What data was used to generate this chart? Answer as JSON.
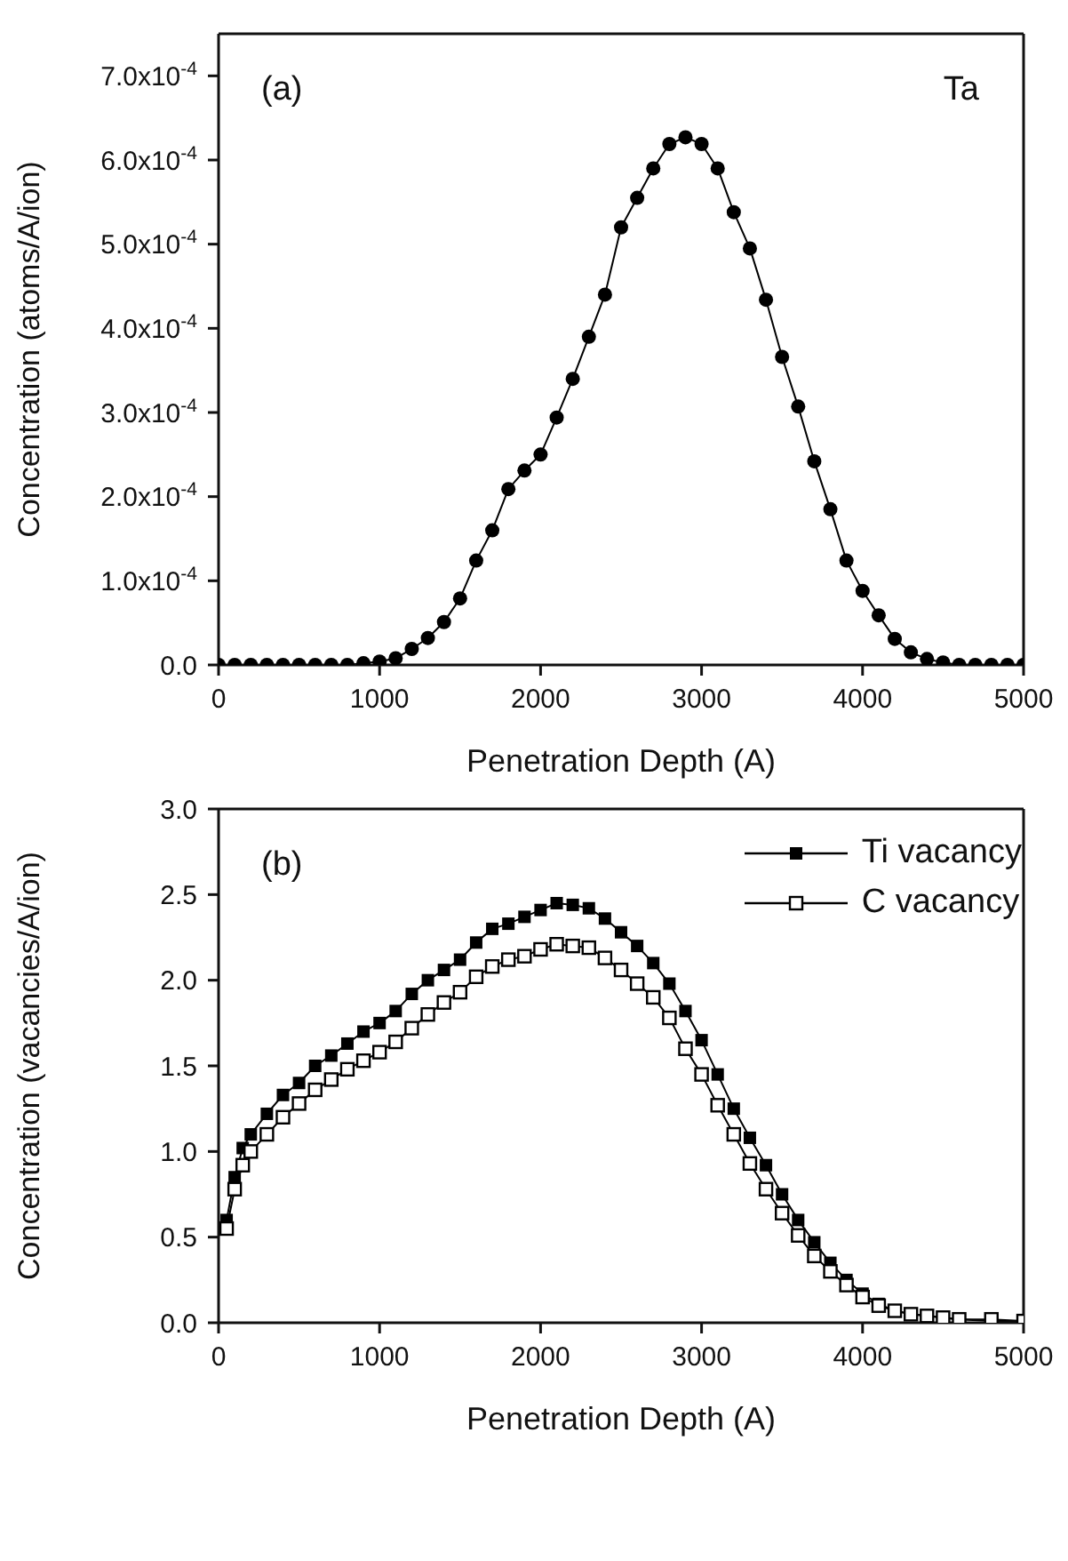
{
  "chart_data": [
    {
      "type": "line",
      "xlabel": "Penetration Depth (A)",
      "ylabel": "Concentration (atoms/A/ion)",
      "annotations": [
        "(a)",
        "Ta"
      ],
      "marker": "circle",
      "line_style": "solid",
      "legend": false,
      "xlim": [
        0,
        5000
      ],
      "xticks": [
        0,
        1000,
        2000,
        3000,
        4000,
        5000
      ],
      "ylim": [
        0,
        0.00075
      ],
      "yticks": [
        {
          "value": 0,
          "label": "0.0"
        },
        {
          "value": 0.0001,
          "label": "1.0x10$^{-4}$"
        },
        {
          "value": 0.0002,
          "label": "2.0x10$^{-4}$"
        },
        {
          "value": 0.0003,
          "label": "3.0x10$^{-4}$"
        },
        {
          "value": 0.0004,
          "label": "4.0x10$^{-4}$"
        },
        {
          "value": 0.0005,
          "label": "5.0x10$^{-4}$"
        },
        {
          "value": 0.0006,
          "label": "6.0x10$^{-4}$"
        },
        {
          "value": 0.0007,
          "label": "7.0x10$^{-4}$"
        }
      ],
      "x": [
        0,
        100,
        200,
        300,
        400,
        500,
        600,
        700,
        800,
        900,
        1000,
        1100,
        1200,
        1300,
        1400,
        1500,
        1600,
        1700,
        1800,
        1900,
        2000,
        2100,
        2200,
        2300,
        2400,
        2500,
        2600,
        2700,
        2800,
        2900,
        3000,
        3100,
        3200,
        3300,
        3400,
        3500,
        3600,
        3700,
        3800,
        3900,
        4000,
        4100,
        4200,
        4300,
        4400,
        4500,
        4600,
        4700,
        4800,
        4900,
        5000
      ],
      "series": [
        {
          "color": "#000000",
          "values": [
            0,
            0,
            0,
            0,
            0,
            0,
            0,
            0,
            0,
            2e-06,
            4e-06,
            8e-06,
            1.9e-05,
            3.2e-05,
            5.1e-05,
            7.9e-05,
            0.000124,
            0.00016,
            0.000209,
            0.000231,
            0.00025,
            0.000294,
            0.00034,
            0.00039,
            0.00044,
            0.00052,
            0.000555,
            0.00059,
            0.000619,
            0.000627,
            0.000619,
            0.00059,
            0.000538,
            0.000495,
            0.000434,
            0.000366,
            0.000307,
            0.000242,
            0.000185,
            0.000124,
            8.8e-05,
            5.9e-05,
            3.1e-05,
            1.5e-05,
            7e-06,
            3e-06,
            0,
            0,
            0,
            0,
            0
          ]
        }
      ]
    },
    {
      "type": "line",
      "xlabel": "Penetration Depth (A)",
      "ylabel": "Concentration (vacancies/A/ion)",
      "annotations": [
        "(b)"
      ],
      "marker": "square",
      "line_style": "solid",
      "legend": "top right",
      "xlim": [
        0,
        5000
      ],
      "xticks": [
        0,
        1000,
        2000,
        3000,
        4000,
        5000
      ],
      "ylim": [
        0,
        3
      ],
      "yticks": [
        {
          "value": 0,
          "label": "0.0"
        },
        {
          "value": 0.5,
          "label": "0.5"
        },
        {
          "value": 1,
          "label": "1.0"
        },
        {
          "value": 1.5,
          "label": "1.5"
        },
        {
          "value": 2,
          "label": "2.0"
        },
        {
          "value": 2.5,
          "label": "2.5"
        },
        {
          "value": 3,
          "label": "3.0"
        }
      ],
      "x": [
        50,
        100,
        150,
        200,
        300,
        400,
        500,
        600,
        700,
        800,
        900,
        1000,
        1100,
        1200,
        1300,
        1400,
        1500,
        1600,
        1700,
        1800,
        1900,
        2000,
        2100,
        2200,
        2300,
        2400,
        2500,
        2600,
        2700,
        2800,
        2900,
        3000,
        3100,
        3200,
        3300,
        3400,
        3500,
        3600,
        3700,
        3800,
        3900,
        4000,
        4100,
        4200,
        4300,
        4400,
        4500,
        4600,
        4800,
        5000
      ],
      "series": [
        {
          "name": "Ti vacancy",
          "color": "#000000",
          "values": [
            0.6,
            0.85,
            1.02,
            1.1,
            1.22,
            1.33,
            1.4,
            1.5,
            1.56,
            1.63,
            1.7,
            1.75,
            1.82,
            1.92,
            2.0,
            2.06,
            2.12,
            2.22,
            2.3,
            2.33,
            2.37,
            2.41,
            2.45,
            2.44,
            2.42,
            2.36,
            2.28,
            2.2,
            2.1,
            1.98,
            1.82,
            1.65,
            1.45,
            1.25,
            1.08,
            0.92,
            0.75,
            0.6,
            0.47,
            0.35,
            0.25,
            0.17,
            0.11,
            0.07,
            0.05,
            0.04,
            0.03,
            0.02,
            0.01,
            0.01
          ]
        },
        {
          "name": "C vacancy",
          "color": "#000000",
          "values": [
            0.55,
            0.78,
            0.92,
            1.0,
            1.1,
            1.2,
            1.28,
            1.36,
            1.42,
            1.48,
            1.53,
            1.58,
            1.64,
            1.72,
            1.8,
            1.87,
            1.93,
            2.02,
            2.08,
            2.12,
            2.14,
            2.18,
            2.21,
            2.2,
            2.19,
            2.13,
            2.06,
            1.98,
            1.9,
            1.78,
            1.6,
            1.45,
            1.27,
            1.1,
            0.93,
            0.78,
            0.64,
            0.51,
            0.39,
            0.3,
            0.22,
            0.15,
            0.1,
            0.07,
            0.05,
            0.04,
            0.03,
            0.02,
            0.02,
            0.01
          ]
        }
      ]
    }
  ]
}
